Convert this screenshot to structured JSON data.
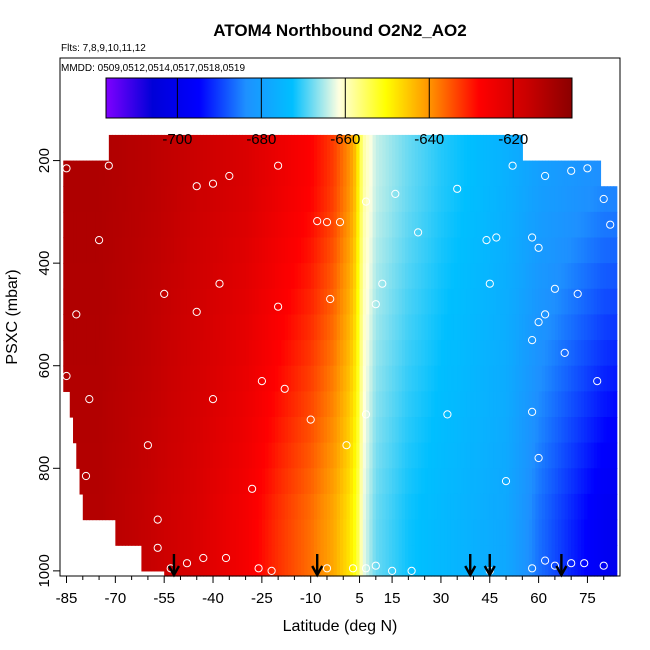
{
  "chart_data": {
    "type": "heatmap",
    "title": "ATOM4 Northbound O2N2_AO2",
    "subtitle_flights": "Flts: 7,8,9,10,11,12",
    "subtitle_dates": "MMDD: 0509,0512,0514,0517,0518,0519",
    "xlabel": "Latitude (deg N)",
    "ylabel": "PSXC (mbar)",
    "xlim": [
      -87,
      85
    ],
    "ylim": [
      1010,
      0
    ],
    "x_ticks": [
      -85,
      -70,
      -55,
      -40,
      -25,
      -10,
      5,
      15,
      30,
      45,
      60,
      75
    ],
    "y_ticks": [
      200,
      400,
      600,
      800,
      1000
    ],
    "colorbar": {
      "range": [
        -717,
        -606
      ],
      "ticks": [
        -700,
        -680,
        -660,
        -640,
        -620
      ],
      "colors": [
        "#7f00ff",
        "#0000d8",
        "#0000ff",
        "#1e90ff",
        "#00bfff",
        "#ffffe0",
        "#ffff00",
        "#ff8c00",
        "#ff0000",
        "#cc0000",
        "#8b0000"
      ]
    },
    "pressure_bins": [
      {
        "p_top": 150,
        "p_bottom": 200,
        "lat_start": -72,
        "lat_end": 55
      },
      {
        "p_top": 200,
        "p_bottom": 250,
        "lat_start": -86,
        "lat_end": 79
      },
      {
        "p_top": 250,
        "p_bottom": 300,
        "lat_start": -86,
        "lat_end": 84
      },
      {
        "p_top": 300,
        "p_bottom": 350,
        "lat_start": -86,
        "lat_end": 84
      },
      {
        "p_top": 350,
        "p_bottom": 400,
        "lat_start": -86,
        "lat_end": 84
      },
      {
        "p_top": 400,
        "p_bottom": 450,
        "lat_start": -86,
        "lat_end": 84
      },
      {
        "p_top": 450,
        "p_bottom": 500,
        "lat_start": -86,
        "lat_end": 84
      },
      {
        "p_top": 500,
        "p_bottom": 550,
        "lat_start": -86,
        "lat_end": 84
      },
      {
        "p_top": 550,
        "p_bottom": 600,
        "lat_start": -86,
        "lat_end": 84
      },
      {
        "p_top": 600,
        "p_bottom": 650,
        "lat_start": -86,
        "lat_end": 84
      },
      {
        "p_top": 650,
        "p_bottom": 700,
        "lat_start": -84,
        "lat_end": 84
      },
      {
        "p_top": 700,
        "p_bottom": 750,
        "lat_start": -83,
        "lat_end": 84
      },
      {
        "p_top": 750,
        "p_bottom": 800,
        "lat_start": -82,
        "lat_end": 84
      },
      {
        "p_top": 800,
        "p_bottom": 850,
        "lat_start": -81,
        "lat_end": 84
      },
      {
        "p_top": 850,
        "p_bottom": 900,
        "lat_start": -80,
        "lat_end": 84
      },
      {
        "p_top": 900,
        "p_bottom": 950,
        "lat_start": -70,
        "lat_end": 84
      },
      {
        "p_top": 950,
        "p_bottom": 1000,
        "lat_start": -62,
        "lat_end": 84
      },
      {
        "p_top": 1000,
        "p_bottom": 1010,
        "lat_start": -55,
        "lat_end": 84
      }
    ],
    "value_profile": {
      "lat": [
        -86,
        -75,
        -60,
        -45,
        -30,
        -20,
        -10,
        -3,
        2,
        4,
        5,
        6,
        10,
        20,
        30,
        40,
        50,
        55,
        60,
        70,
        80,
        85
      ],
      "lower_trop": [
        -613,
        -613,
        -616,
        -620,
        -626,
        -632,
        -637,
        -642,
        -648,
        -652,
        -656,
        -662,
        -668,
        -672,
        -674,
        -676,
        -678,
        -682,
        -686,
        -692,
        -698,
        -700
      ],
      "upper_trop": [
        -612,
        -612,
        -614,
        -617,
        -620,
        -624,
        -628,
        -633,
        -640,
        -645,
        -652,
        -658,
        -664,
        -668,
        -671,
        -673,
        -676,
        -678,
        -680,
        -682,
        -684,
        -684
      ]
    },
    "sample_points": [
      {
        "lat": -85,
        "p": 215
      },
      {
        "lat": -72,
        "p": 210
      },
      {
        "lat": -45,
        "p": 250
      },
      {
        "lat": -40,
        "p": 245
      },
      {
        "lat": -35,
        "p": 230
      },
      {
        "lat": -20,
        "p": 210
      },
      {
        "lat": -8,
        "p": 318
      },
      {
        "lat": -5,
        "p": 320
      },
      {
        "lat": -1,
        "p": 320
      },
      {
        "lat": 7,
        "p": 280
      },
      {
        "lat": 16,
        "p": 265
      },
      {
        "lat": 23,
        "p": 340
      },
      {
        "lat": 35,
        "p": 255
      },
      {
        "lat": 44,
        "p": 355
      },
      {
        "lat": 47,
        "p": 350
      },
      {
        "lat": 52,
        "p": 210
      },
      {
        "lat": 58,
        "p": 350
      },
      {
        "lat": 62,
        "p": 230
      },
      {
        "lat": 70,
        "p": 220
      },
      {
        "lat": 75,
        "p": 215
      },
      {
        "lat": 80,
        "p": 275
      },
      {
        "lat": 82,
        "p": 325
      },
      {
        "lat": 87,
        "p": 380
      },
      {
        "lat": -75,
        "p": 355
      },
      {
        "lat": -38,
        "p": 440
      },
      {
        "lat": -4,
        "p": 470
      },
      {
        "lat": 10,
        "p": 480
      },
      {
        "lat": 12,
        "p": 440
      },
      {
        "lat": 45,
        "p": 440
      },
      {
        "lat": 60,
        "p": 370
      },
      {
        "lat": 65,
        "p": 450
      },
      {
        "lat": 72,
        "p": 460
      },
      {
        "lat": -82,
        "p": 500
      },
      {
        "lat": -55,
        "p": 460
      },
      {
        "lat": -45,
        "p": 495
      },
      {
        "lat": -20,
        "p": 485
      },
      {
        "lat": 58,
        "p": 550
      },
      {
        "lat": 60,
        "p": 515
      },
      {
        "lat": 62,
        "p": 500
      },
      {
        "lat": 68,
        "p": 575
      },
      {
        "lat": -85,
        "p": 620
      },
      {
        "lat": -25,
        "p": 630
      },
      {
        "lat": -18,
        "p": 645
      },
      {
        "lat": 78,
        "p": 630
      },
      {
        "lat": -78,
        "p": 665
      },
      {
        "lat": -40,
        "p": 665
      },
      {
        "lat": -10,
        "p": 705
      },
      {
        "lat": 7,
        "p": 695
      },
      {
        "lat": 32,
        "p": 695
      },
      {
        "lat": 58,
        "p": 690
      },
      {
        "lat": 1,
        "p": 755
      },
      {
        "lat": -60,
        "p": 755
      },
      {
        "lat": 60,
        "p": 780
      },
      {
        "lat": -79,
        "p": 815
      },
      {
        "lat": -28,
        "p": 840
      },
      {
        "lat": 50,
        "p": 825
      },
      {
        "lat": -57,
        "p": 900
      },
      {
        "lat": -57,
        "p": 955
      },
      {
        "lat": -53,
        "p": 995
      },
      {
        "lat": -48,
        "p": 985
      },
      {
        "lat": -43,
        "p": 975
      },
      {
        "lat": -36,
        "p": 975
      },
      {
        "lat": -26,
        "p": 995
      },
      {
        "lat": -22,
        "p": 1000
      },
      {
        "lat": -5,
        "p": 995
      },
      {
        "lat": 3,
        "p": 995
      },
      {
        "lat": 7,
        "p": 995
      },
      {
        "lat": 10,
        "p": 990
      },
      {
        "lat": 15,
        "p": 1000
      },
      {
        "lat": 21,
        "p": 1000
      },
      {
        "lat": 45,
        "p": 1000
      },
      {
        "lat": 58,
        "p": 995
      },
      {
        "lat": 62,
        "p": 980
      },
      {
        "lat": 65,
        "p": 990
      },
      {
        "lat": 70,
        "p": 985
      },
      {
        "lat": 74,
        "p": 985
      },
      {
        "lat": 80,
        "p": 990
      }
    ],
    "profile_arrows_lat": [
      -52,
      -8,
      39,
      45,
      67
    ]
  }
}
